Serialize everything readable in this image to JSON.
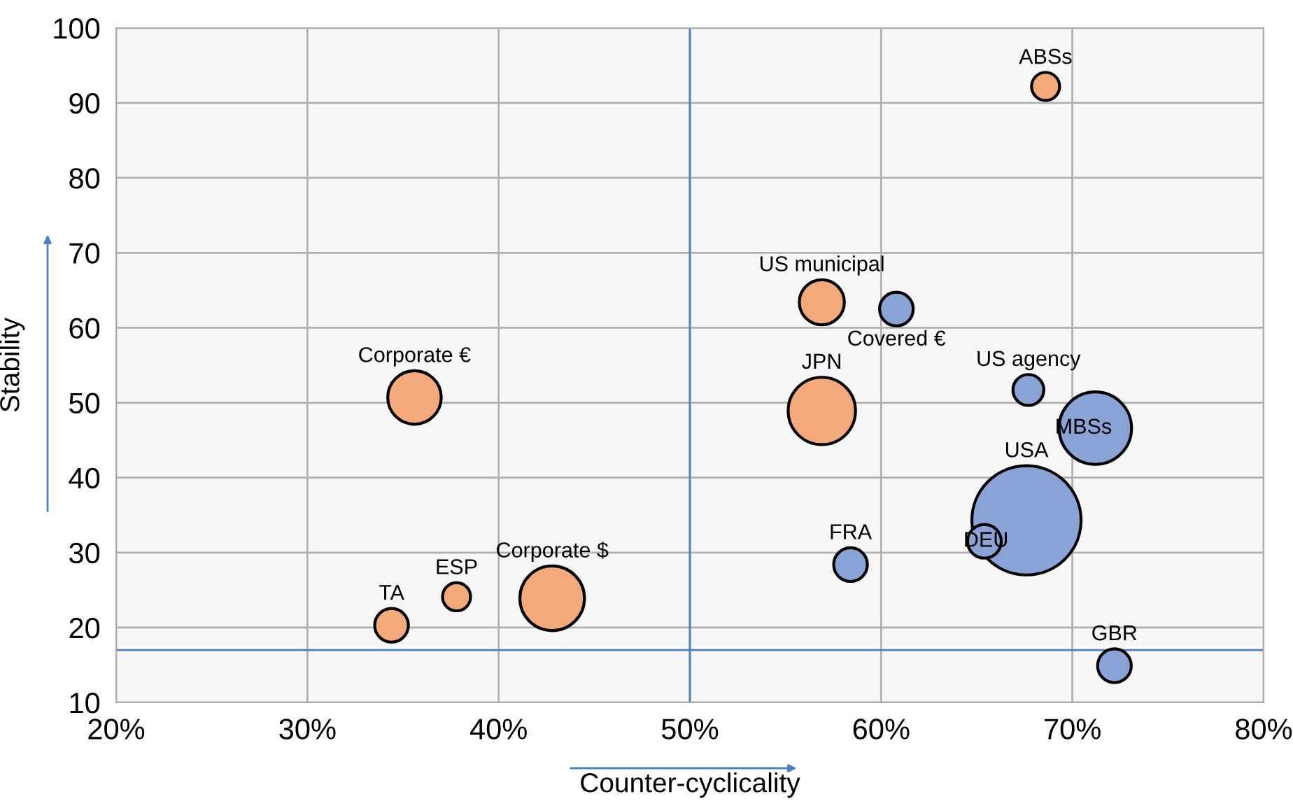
{
  "chart_data": {
    "type": "bubble",
    "xlabel": "Counter-cyclicality",
    "ylabel": "Stability",
    "xlim": [
      20,
      80
    ],
    "xticks": [
      {
        "value": 20,
        "label": "20%"
      },
      {
        "value": 30,
        "label": "30%"
      },
      {
        "value": 40,
        "label": "40%"
      },
      {
        "value": 50,
        "label": "50%"
      },
      {
        "value": 60,
        "label": "60%"
      },
      {
        "value": 70,
        "label": "70%"
      },
      {
        "value": 80,
        "label": "80%"
      }
    ],
    "ylim": [
      10,
      100
    ],
    "yticks": [
      10,
      20,
      30,
      40,
      50,
      60,
      70,
      80,
      90,
      100
    ],
    "grid": true,
    "legend": false,
    "marker": "circle",
    "relative": false,
    "ref_lines": [
      {
        "axis": "x",
        "value": 50,
        "color": "#4a7fc8"
      },
      {
        "axis": "y",
        "value": 17,
        "color": "#4a7fc8"
      }
    ],
    "series": [
      {
        "color": "#f4a97a",
        "x": [
          68.6,
          56.9,
          35.6,
          56.9,
          42.8,
          37.8,
          34.4
        ],
        "values": [
          92.2,
          63.4,
          50.7,
          48.9,
          23.9,
          24.1,
          20.3
        ],
        "sizes": [
          0.066,
          0.17,
          0.24,
          0.38,
          0.35,
          0.066,
          0.095
        ],
        "value_labels": [
          "ABSs",
          "US municipal",
          "Corporate €",
          "JPN",
          "Corporate $",
          "ESP",
          "TA"
        ]
      },
      {
        "color": "#8aa3d6",
        "x": [
          60.8,
          67.7,
          71.2,
          67.6,
          65.4,
          58.4,
          72.2
        ],
        "values": [
          62.5,
          51.7,
          46.6,
          34.3,
          31.5,
          28.4,
          14.9
        ],
        "sizes": [
          0.095,
          0.08,
          0.44,
          1,
          0.095,
          0.095,
          0.095
        ],
        "value_labels": [
          "Covered €",
          "US agency",
          "MBSs",
          "USA",
          "DEU",
          "FRA",
          "GBR"
        ]
      }
    ]
  }
}
